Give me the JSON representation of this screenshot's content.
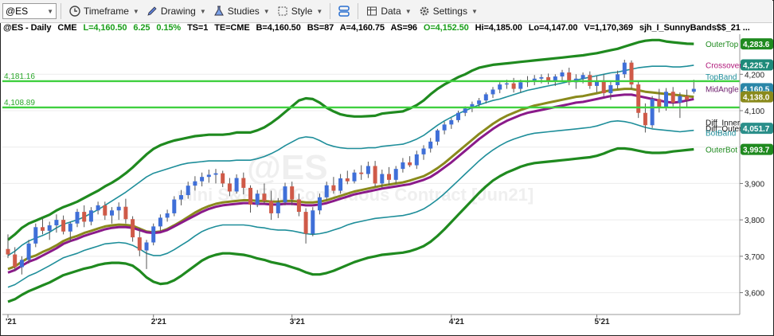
{
  "toolbar": {
    "symbol": "@ES",
    "timeframe": "Timeframe",
    "drawing": "Drawing",
    "studies": "Studies",
    "style": "Style",
    "data": "Data",
    "settings": "Settings"
  },
  "infobar": {
    "symbol": "@ES - Daily",
    "exchange": "CME",
    "last": "L=4,160.50",
    "change": "6.25",
    "change_pct": "0.15%",
    "ts": "TS=1",
    "te": "TE=CME",
    "bid": "B=4,160.50",
    "bs": "BS=87",
    "ask": "A=4,160.75",
    "as": "AS=96",
    "open": "O=4,152.50",
    "high": "Hi=4,185.00",
    "low": "Lo=4,147.00",
    "volume": "V=1,170,369",
    "study": "sjh_I_SunnyBands$$_21 ..."
  },
  "watermark": {
    "symbol": "@ES",
    "description": "mini S&P 500 Continuous Contract [Jun21]"
  },
  "colors": {
    "up": "#3f6fd8",
    "down": "#cf5a48",
    "outer": "#1f8a1f",
    "top_band": "#1e8e9a",
    "mid_olive": "#8a8a1c",
    "mid_purple": "#8a1a8a",
    "hline": "#3fd03f"
  },
  "chart_data": {
    "type": "line",
    "title": "",
    "xlabel": "",
    "ylabel": "",
    "ylim": [
      3540,
      4310
    ],
    "y_ticks": [
      3600,
      3700,
      3800,
      3900,
      4000,
      4100,
      4200
    ],
    "y_tick_labels": [
      "3,600",
      "3,700",
      "3,800",
      "3,900",
      "4,000",
      "4,100",
      "4,200"
    ],
    "x_tick_labels": [
      {
        "label": "'21",
        "bar": 0
      },
      {
        "label": "2'21",
        "bar": 21
      },
      {
        "label": "3'21",
        "bar": 41
      },
      {
        "label": "4'21",
        "bar": 64
      },
      {
        "label": "5'21",
        "bar": 85
      }
    ],
    "horizontal_lines": [
      {
        "label": "4,181.16",
        "value": 4181.16
      },
      {
        "label": "4,108.89",
        "value": 4108.89
      }
    ],
    "right_labels": [
      {
        "name": "OuterTop",
        "price": "4,283.6",
        "value": 4283.6
      },
      {
        "name": "Crossover",
        "price": "4,225.7",
        "value": 4225.7
      },
      {
        "name": "TopBand",
        "price": "",
        "value": 4194
      },
      {
        "name": "MidAngle",
        "price": "4,160.5",
        "value": 4160.5
      },
      {
        "name": "",
        "price": "4,138.0",
        "value": 4138.0
      },
      {
        "name": "Diff_Inner",
        "price": "",
        "value": 4068
      },
      {
        "name": "Diff_Outer",
        "price": "4,051.7",
        "value": 4051.7
      },
      {
        "name": "BotBand",
        "price": "",
        "value": 4040
      },
      {
        "name": "OuterBot",
        "price": "3,993.7",
        "value": 3993.7
      }
    ],
    "candles": [
      [
        3720,
        3760,
        3695,
        3705
      ],
      [
        3705,
        3725,
        3660,
        3670
      ],
      [
        3670,
        3700,
        3650,
        3690
      ],
      [
        3690,
        3745,
        3680,
        3735
      ],
      [
        3735,
        3790,
        3725,
        3780
      ],
      [
        3780,
        3805,
        3760,
        3770
      ],
      [
        3770,
        3795,
        3745,
        3785
      ],
      [
        3785,
        3815,
        3765,
        3800
      ],
      [
        3800,
        3812,
        3760,
        3768
      ],
      [
        3768,
        3795,
        3740,
        3790
      ],
      [
        3790,
        3830,
        3780,
        3822
      ],
      [
        3822,
        3840,
        3780,
        3795
      ],
      [
        3795,
        3835,
        3785,
        3826
      ],
      [
        3826,
        3850,
        3815,
        3840
      ],
      [
        3840,
        3850,
        3800,
        3812
      ],
      [
        3812,
        3835,
        3790,
        3826
      ],
      [
        3826,
        3848,
        3800,
        3836
      ],
      [
        3836,
        3858,
        3790,
        3802
      ],
      [
        3802,
        3810,
        3740,
        3752
      ],
      [
        3752,
        3778,
        3700,
        3716
      ],
      [
        3716,
        3745,
        3665,
        3738
      ],
      [
        3738,
        3790,
        3730,
        3782
      ],
      [
        3782,
        3815,
        3770,
        3806
      ],
      [
        3806,
        3828,
        3795,
        3818
      ],
      [
        3818,
        3865,
        3810,
        3856
      ],
      [
        3856,
        3882,
        3840,
        3868
      ],
      [
        3868,
        3905,
        3858,
        3894
      ],
      [
        3894,
        3920,
        3880,
        3906
      ],
      [
        3906,
        3930,
        3892,
        3918
      ],
      [
        3918,
        3938,
        3902,
        3924
      ],
      [
        3924,
        3940,
        3900,
        3928
      ],
      [
        3928,
        3935,
        3890,
        3900
      ],
      [
        3900,
        3915,
        3865,
        3878
      ],
      [
        3878,
        3925,
        3872,
        3915
      ],
      [
        3915,
        3930,
        3870,
        3888
      ],
      [
        3888,
        3895,
        3820,
        3842
      ],
      [
        3842,
        3882,
        3835,
        3872
      ],
      [
        3872,
        3900,
        3845,
        3852
      ],
      [
        3852,
        3880,
        3800,
        3818
      ],
      [
        3818,
        3860,
        3805,
        3848
      ],
      [
        3848,
        3902,
        3840,
        3892
      ],
      [
        3892,
        3905,
        3840,
        3856
      ],
      [
        3856,
        3872,
        3810,
        3822
      ],
      [
        3822,
        3832,
        3735,
        3762
      ],
      [
        3762,
        3835,
        3755,
        3826
      ],
      [
        3826,
        3872,
        3815,
        3862
      ],
      [
        3862,
        3905,
        3855,
        3895
      ],
      [
        3895,
        3918,
        3872,
        3880
      ],
      [
        3880,
        3926,
        3872,
        3914
      ],
      [
        3914,
        3935,
        3898,
        3906
      ],
      [
        3906,
        3938,
        3900,
        3930
      ],
      [
        3930,
        3950,
        3910,
        3926
      ],
      [
        3926,
        3960,
        3915,
        3948
      ],
      [
        3948,
        3962,
        3890,
        3900
      ],
      [
        3900,
        3938,
        3888,
        3926
      ],
      [
        3926,
        3945,
        3895,
        3910
      ],
      [
        3910,
        3948,
        3900,
        3940
      ],
      [
        3940,
        3970,
        3930,
        3958
      ],
      [
        3958,
        3975,
        3945,
        3950
      ],
      [
        3950,
        3990,
        3940,
        3980
      ],
      [
        3980,
        4005,
        3965,
        3996
      ],
      [
        3996,
        4025,
        3985,
        4015
      ],
      [
        4015,
        4050,
        4005,
        4046
      ],
      [
        4046,
        4070,
        4035,
        4062
      ],
      [
        4062,
        4080,
        4050,
        4074
      ],
      [
        4074,
        4100,
        4068,
        4094
      ],
      [
        4094,
        4112,
        4085,
        4106
      ],
      [
        4106,
        4125,
        4096,
        4118
      ],
      [
        4118,
        4135,
        4108,
        4128
      ],
      [
        4128,
        4150,
        4120,
        4145
      ],
      [
        4145,
        4165,
        4135,
        4158
      ],
      [
        4158,
        4178,
        4148,
        4172
      ],
      [
        4172,
        4185,
        4160,
        4175
      ],
      [
        4175,
        4190,
        4150,
        4160
      ],
      [
        4160,
        4185,
        4150,
        4178
      ],
      [
        4178,
        4195,
        4165,
        4182
      ],
      [
        4182,
        4198,
        4170,
        4188
      ],
      [
        4188,
        4200,
        4175,
        4192
      ],
      [
        4192,
        4202,
        4172,
        4180
      ],
      [
        4180,
        4200,
        4168,
        4194
      ],
      [
        4194,
        4212,
        4180,
        4205
      ],
      [
        4205,
        4218,
        4170,
        4178
      ],
      [
        4178,
        4200,
        4160,
        4188
      ],
      [
        4188,
        4205,
        4175,
        4198
      ],
      [
        4198,
        4208,
        4160,
        4168
      ],
      [
        4168,
        4195,
        4150,
        4182
      ],
      [
        4182,
        4200,
        4140,
        4148
      ],
      [
        4148,
        4180,
        4130,
        4170
      ],
      [
        4170,
        4210,
        4160,
        4200
      ],
      [
        4200,
        4240,
        4190,
        4232
      ],
      [
        4232,
        4238,
        4160,
        4172
      ],
      [
        4172,
        4180,
        4080,
        4094
      ],
      [
        4094,
        4120,
        4040,
        4060
      ],
      [
        4060,
        4140,
        4052,
        4132
      ],
      [
        4132,
        4160,
        4095,
        4110
      ],
      [
        4110,
        4162,
        4100,
        4152
      ],
      [
        4152,
        4165,
        4112,
        4122
      ],
      [
        4122,
        4150,
        4080,
        4140
      ],
      [
        4140,
        4158,
        4110,
        4130
      ],
      [
        4152,
        4185,
        4147,
        4160
      ]
    ],
    "series": [
      {
        "name": "OuterTop",
        "values": [
          3745,
          3760,
          3778,
          3790,
          3798,
          3806,
          3814,
          3826,
          3835,
          3842,
          3850,
          3860,
          3870,
          3880,
          3892,
          3902,
          3914,
          3928,
          3944,
          3962,
          3980,
          3995,
          4005,
          4012,
          4018,
          4022,
          4026,
          4030,
          4032,
          4034,
          4034,
          4034,
          4036,
          4040,
          4040,
          4040,
          4046,
          4054,
          4066,
          4080,
          4096,
          4112,
          4128,
          4134,
          4132,
          4122,
          4108,
          4098,
          4090,
          4086,
          4084,
          4084,
          4085,
          4086,
          4092,
          4094,
          4096,
          4098,
          4106,
          4115,
          4128,
          4145,
          4160,
          4172,
          4182,
          4192,
          4200,
          4210,
          4218,
          4222,
          4226,
          4228,
          4230,
          4232,
          4234,
          4236,
          4238,
          4240,
          4242,
          4244,
          4246,
          4248,
          4250,
          4252,
          4255,
          4258,
          4262,
          4266,
          4270,
          4276,
          4282,
          4288,
          4292,
          4294,
          4294,
          4290,
          4288,
          4286,
          4284,
          4283.6
        ]
      },
      {
        "name": "TopBand",
        "values": [
          3702,
          3714,
          3730,
          3742,
          3750,
          3757,
          3766,
          3778,
          3788,
          3794,
          3800,
          3808,
          3818,
          3828,
          3840,
          3852,
          3864,
          3876,
          3890,
          3904,
          3918,
          3928,
          3934,
          3940,
          3946,
          3952,
          3956,
          3958,
          3960,
          3962,
          3962,
          3962,
          3962,
          3964,
          3964,
          3964,
          3968,
          3974,
          3982,
          3992,
          4004,
          4014,
          4024,
          4028,
          4026,
          4018,
          4008,
          4002,
          3998,
          3996,
          3996,
          3996,
          3998,
          3998,
          4002,
          4004,
          4006,
          4008,
          4014,
          4022,
          4032,
          4046,
          4060,
          4072,
          4082,
          4092,
          4100,
          4108,
          4116,
          4122,
          4128,
          4132,
          4138,
          4144,
          4150,
          4156,
          4160,
          4164,
          4168,
          4172,
          4176,
          4180,
          4184,
          4188,
          4192,
          4196,
          4200,
          4204,
          4206,
          4210,
          4214,
          4218,
          4220,
          4222,
          4222,
          4222,
          4220,
          4220,
          4222,
          4225
        ]
      },
      {
        "name": "MidOlive",
        "values": [
          3665,
          3672,
          3685,
          3696,
          3702,
          3712,
          3720,
          3730,
          3742,
          3750,
          3756,
          3764,
          3770,
          3776,
          3782,
          3785,
          3787,
          3786,
          3784,
          3776,
          3768,
          3766,
          3768,
          3775,
          3785,
          3796,
          3808,
          3820,
          3830,
          3838,
          3844,
          3848,
          3850,
          3852,
          3854,
          3854,
          3852,
          3852,
          3850,
          3850,
          3852,
          3852,
          3850,
          3848,
          3848,
          3850,
          3854,
          3860,
          3866,
          3872,
          3878,
          3882,
          3886,
          3890,
          3894,
          3897,
          3900,
          3903,
          3908,
          3914,
          3920,
          3930,
          3942,
          3956,
          3972,
          3988,
          4004,
          4020,
          4036,
          4050,
          4064,
          4076,
          4086,
          4094,
          4102,
          4108,
          4114,
          4118,
          4122,
          4126,
          4130,
          4134,
          4138,
          4140,
          4144,
          4148,
          4152,
          4156,
          4158,
          4160,
          4160,
          4156,
          4152,
          4150,
          4148,
          4146,
          4144,
          4142,
          4140,
          4138
        ]
      },
      {
        "name": "MidPurple",
        "values": [
          3655,
          3662,
          3674,
          3685,
          3692,
          3702,
          3712,
          3722,
          3734,
          3742,
          3748,
          3756,
          3762,
          3768,
          3774,
          3778,
          3780,
          3780,
          3778,
          3772,
          3766,
          3764,
          3766,
          3772,
          3782,
          3792,
          3802,
          3812,
          3822,
          3830,
          3836,
          3840,
          3842,
          3844,
          3846,
          3846,
          3844,
          3844,
          3842,
          3842,
          3844,
          3844,
          3842,
          3840,
          3840,
          3842,
          3846,
          3852,
          3858,
          3864,
          3870,
          3874,
          3878,
          3882,
          3886,
          3889,
          3892,
          3895,
          3898,
          3904,
          3910,
          3918,
          3930,
          3944,
          3958,
          3974,
          3990,
          4006,
          4022,
          4036,
          4050,
          4062,
          4072,
          4080,
          4088,
          4094,
          4098,
          4102,
          4106,
          4110,
          4114,
          4118,
          4122,
          4124,
          4128,
          4132,
          4136,
          4140,
          4142,
          4144,
          4144,
          4140,
          4136,
          4132,
          4128,
          4124,
          4122,
          4124,
          4128,
          4132
        ]
      },
      {
        "name": "BotBand",
        "values": [
          3615,
          3622,
          3634,
          3646,
          3654,
          3664,
          3674,
          3685,
          3696,
          3702,
          3708,
          3716,
          3722,
          3728,
          3734,
          3736,
          3738,
          3736,
          3730,
          3720,
          3708,
          3702,
          3702,
          3708,
          3718,
          3730,
          3742,
          3756,
          3768,
          3776,
          3782,
          3786,
          3786,
          3786,
          3786,
          3784,
          3780,
          3778,
          3774,
          3772,
          3772,
          3770,
          3766,
          3762,
          3760,
          3762,
          3766,
          3772,
          3778,
          3786,
          3792,
          3796,
          3800,
          3804,
          3806,
          3808,
          3810,
          3812,
          3816,
          3822,
          3830,
          3842,
          3856,
          3872,
          3890,
          3908,
          3926,
          3944,
          3962,
          3978,
          3992,
          4004,
          4014,
          4022,
          4028,
          4034,
          4038,
          4040,
          4042,
          4044,
          4046,
          4048,
          4050,
          4052,
          4054,
          4058,
          4064,
          4070,
          4072,
          4070,
          4066,
          4060,
          4054,
          4050,
          4048,
          4046,
          4044,
          4042,
          4044,
          4046
        ]
      },
      {
        "name": "OuterBot",
        "values": [
          3575,
          3582,
          3594,
          3604,
          3612,
          3620,
          3628,
          3638,
          3648,
          3654,
          3660,
          3666,
          3670,
          3676,
          3680,
          3682,
          3682,
          3680,
          3674,
          3660,
          3642,
          3630,
          3624,
          3626,
          3634,
          3646,
          3660,
          3674,
          3688,
          3698,
          3704,
          3708,
          3708,
          3706,
          3704,
          3700,
          3694,
          3690,
          3684,
          3680,
          3676,
          3670,
          3664,
          3656,
          3650,
          3650,
          3654,
          3660,
          3668,
          3676,
          3684,
          3690,
          3696,
          3700,
          3704,
          3706,
          3708,
          3710,
          3714,
          3720,
          3728,
          3740,
          3756,
          3774,
          3794,
          3814,
          3834,
          3854,
          3874,
          3892,
          3908,
          3920,
          3930,
          3938,
          3946,
          3952,
          3956,
          3958,
          3960,
          3962,
          3964,
          3966,
          3968,
          3970,
          3972,
          3976,
          3982,
          3990,
          3996,
          3996,
          3994,
          3990,
          3986,
          3984,
          3984,
          3985,
          3988,
          3990,
          3992,
          3994
        ]
      }
    ]
  }
}
